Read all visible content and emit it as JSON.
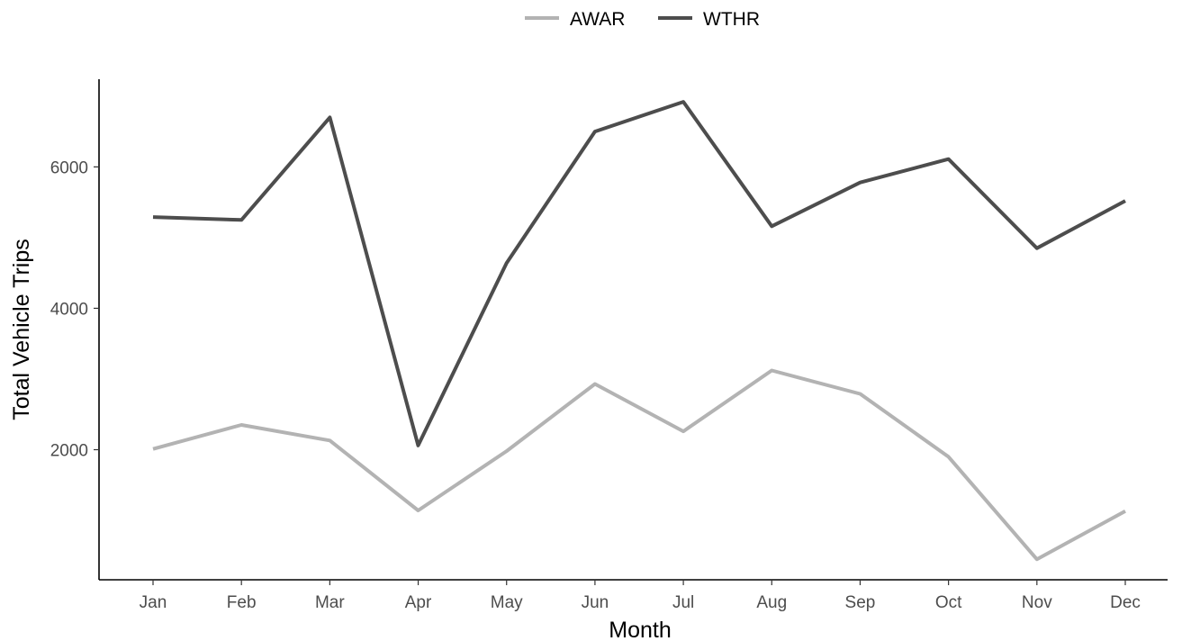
{
  "chart_data": {
    "type": "line",
    "title": "",
    "xlabel": "Month",
    "ylabel": "Total Vehicle Trips",
    "categories": [
      "Jan",
      "Feb",
      "Mar",
      "Apr",
      "May",
      "Jun",
      "Jul",
      "Aug",
      "Sep",
      "Oct",
      "Nov",
      "Dec"
    ],
    "series": [
      {
        "name": "AWAR",
        "color": "#b3b3b3",
        "values": [
          2010,
          2350,
          2130,
          1140,
          1980,
          2930,
          2260,
          3120,
          2790,
          1900,
          450,
          1130
        ]
      },
      {
        "name": "WTHR",
        "color": "#4d4d4d",
        "values": [
          5290,
          5250,
          6700,
          2060,
          4640,
          6500,
          6920,
          5160,
          5780,
          6110,
          4850,
          5520
        ]
      }
    ],
    "yticks": [
      2000,
      4000,
      6000
    ],
    "ylim": [
      160,
      7240
    ],
    "grid": false,
    "legend_position": "top"
  }
}
